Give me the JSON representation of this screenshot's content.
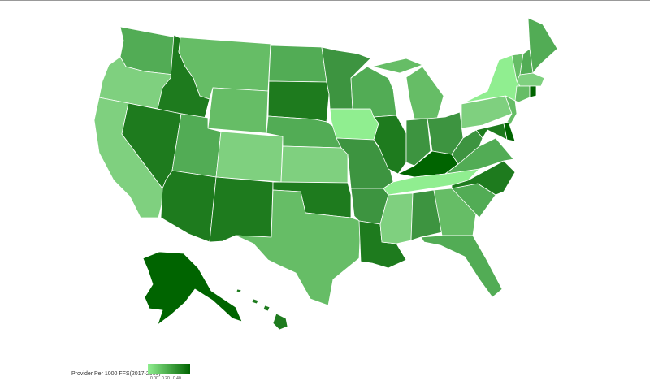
{
  "map": {
    "colors": {
      "darkest": "#006400",
      "dark": "#1e7b1e",
      "medium_dark": "#3d9440",
      "medium": "#52ac55",
      "medium_light": "#66bd66",
      "light": "#7fd07f",
      "lightest": "#90ee90",
      "border": "#ffffff"
    },
    "legend": {
      "title": "Provider Per 1000 FFS(2017-2016)",
      "ticks": [
        "0.00",
        "0.20",
        "0.40"
      ],
      "gradient": [
        "#90ee90",
        "#006400"
      ]
    },
    "states": [
      {
        "id": "WA",
        "level": "medium"
      },
      {
        "id": "OR",
        "level": "light"
      },
      {
        "id": "CA",
        "level": "light"
      },
      {
        "id": "ID",
        "level": "dark"
      },
      {
        "id": "NV",
        "level": "dark"
      },
      {
        "id": "MT",
        "level": "medium_light"
      },
      {
        "id": "WY",
        "level": "medium_light"
      },
      {
        "id": "UT",
        "level": "medium"
      },
      {
        "id": "AZ",
        "level": "dark"
      },
      {
        "id": "CO",
        "level": "light"
      },
      {
        "id": "NM",
        "level": "dark"
      },
      {
        "id": "ND",
        "level": "medium"
      },
      {
        "id": "SD",
        "level": "dark"
      },
      {
        "id": "NE",
        "level": "medium"
      },
      {
        "id": "KS",
        "level": "light"
      },
      {
        "id": "OK",
        "level": "dark"
      },
      {
        "id": "TX",
        "level": "medium_light"
      },
      {
        "id": "MN",
        "level": "medium_dark"
      },
      {
        "id": "IA",
        "level": "lightest"
      },
      {
        "id": "MO",
        "level": "medium_dark"
      },
      {
        "id": "AR",
        "level": "medium_dark"
      },
      {
        "id": "LA",
        "level": "dark"
      },
      {
        "id": "WI",
        "level": "medium"
      },
      {
        "id": "IL",
        "level": "dark"
      },
      {
        "id": "MI",
        "level": "medium_light"
      },
      {
        "id": "IN",
        "level": "medium_dark"
      },
      {
        "id": "OH",
        "level": "medium_dark"
      },
      {
        "id": "KY",
        "level": "darkest"
      },
      {
        "id": "TN",
        "level": "lightest"
      },
      {
        "id": "MS",
        "level": "light"
      },
      {
        "id": "AL",
        "level": "medium_dark"
      },
      {
        "id": "GA",
        "level": "medium_light"
      },
      {
        "id": "FL",
        "level": "medium"
      },
      {
        "id": "SC",
        "level": "medium"
      },
      {
        "id": "NC",
        "level": "dark"
      },
      {
        "id": "VA",
        "level": "medium"
      },
      {
        "id": "WV",
        "level": "medium_dark"
      },
      {
        "id": "PA",
        "level": "light"
      },
      {
        "id": "NY",
        "level": "lightest"
      },
      {
        "id": "NJ",
        "level": "medium_light"
      },
      {
        "id": "MD",
        "level": "dark"
      },
      {
        "id": "DE",
        "level": "darkest"
      },
      {
        "id": "VT",
        "level": "medium_light"
      },
      {
        "id": "NH",
        "level": "medium"
      },
      {
        "id": "ME",
        "level": "medium"
      },
      {
        "id": "MA",
        "level": "light"
      },
      {
        "id": "CT",
        "level": "medium_light"
      },
      {
        "id": "RI",
        "level": "darkest"
      },
      {
        "id": "AK",
        "level": "darkest"
      },
      {
        "id": "HI",
        "level": "dark"
      }
    ]
  }
}
